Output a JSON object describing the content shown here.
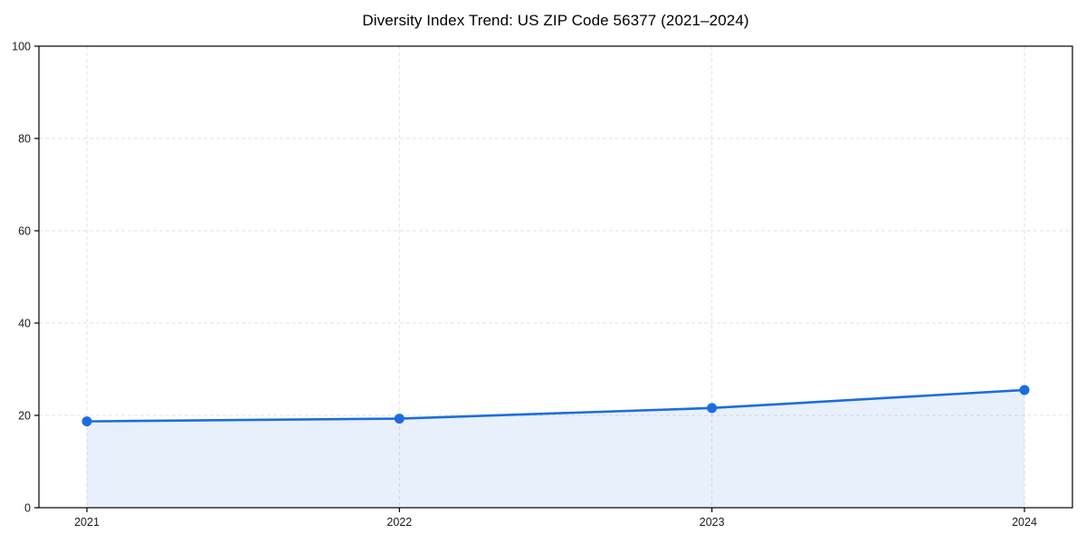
{
  "chart_data": {
    "type": "area",
    "title": "Diversity Index Trend: US ZIP Code 56377 (2021–2024)",
    "x": [
      "2021",
      "2022",
      "2023",
      "2024"
    ],
    "series": [
      {
        "name": "Diversity Index",
        "values": [
          18.7,
          19.3,
          21.6,
          25.5
        ]
      }
    ],
    "xlabel": "",
    "ylabel": "",
    "ylim": [
      0,
      100
    ],
    "yticks": [
      0,
      20,
      40,
      60,
      80,
      100
    ],
    "grid": true,
    "grid_style": "dashed",
    "legend_position": "none",
    "colors": {
      "line": "#1C6CE0",
      "marker": "#1C6CE0",
      "fill_opacity": "0.10",
      "grid": "#E2E2E2",
      "axis": "#000000",
      "tick_text": "#1A1A1A"
    }
  }
}
